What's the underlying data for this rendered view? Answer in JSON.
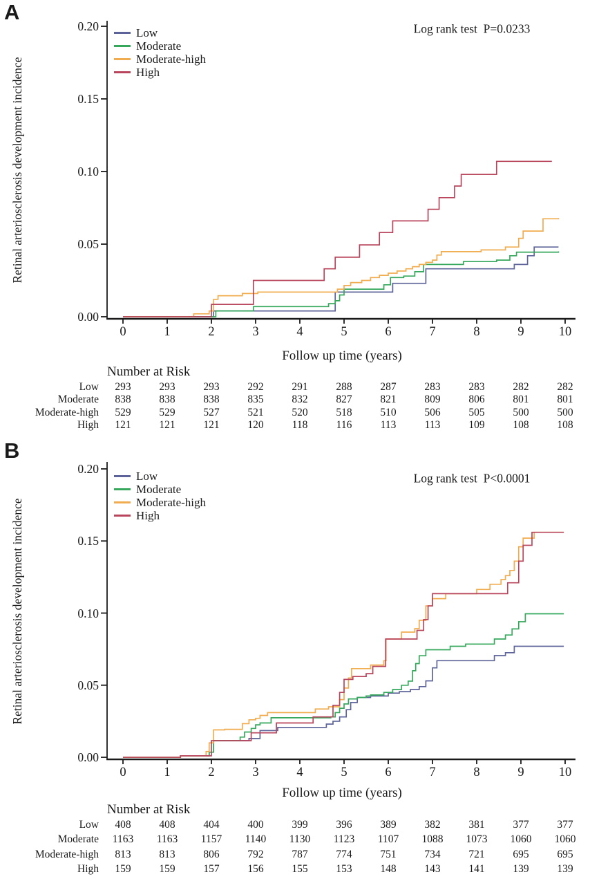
{
  "figure_type": "kaplan-meier-cumulative-incidence",
  "colors": {
    "low": "#5c6399",
    "moderate": "#35a85c",
    "moderate_high": "#f0ac4e",
    "high": "#b8455c",
    "axis": "#1a1a1a"
  },
  "chart_data": [
    {
      "panel": "A",
      "type": "line",
      "subtype": "step",
      "annotation": "Log rank test  P=0.0233",
      "xlabel": "Follow up time (years)",
      "ylabel": "Retinal arteriosclerosis development incidence",
      "xlim": [
        0,
        10
      ],
      "ylim": [
        0,
        0.2
      ],
      "xticks": [
        0,
        1,
        2,
        3,
        4,
        5,
        6,
        7,
        8,
        9,
        10
      ],
      "ytick_labels": [
        "0.00",
        "0.05",
        "0.10",
        "0.15",
        "0.20"
      ],
      "grid": false,
      "legend_position": "upper-left-inside",
      "series": [
        {
          "name": "Low",
          "color": "#5c6399",
          "points": [
            [
              0,
              0
            ],
            [
              2.05,
              0.004
            ],
            [
              4.8,
              0.017
            ],
            [
              6.1,
              0.023
            ],
            [
              6.85,
              0.033
            ],
            [
              8.85,
              0.036
            ],
            [
              9.15,
              0.042
            ],
            [
              9.3,
              0.048
            ],
            [
              9.85,
              0.048
            ]
          ]
        },
        {
          "name": "Moderate",
          "color": "#35a85c",
          "points": [
            [
              0,
              0
            ],
            [
              2.1,
              0.004
            ],
            [
              2.95,
              0.007
            ],
            [
              4.65,
              0.009
            ],
            [
              4.8,
              0.011
            ],
            [
              4.9,
              0.015
            ],
            [
              5.0,
              0.019
            ],
            [
              5.9,
              0.022
            ],
            [
              6.05,
              0.027
            ],
            [
              6.35,
              0.028
            ],
            [
              6.6,
              0.031
            ],
            [
              6.8,
              0.036
            ],
            [
              7.7,
              0.038
            ],
            [
              8.45,
              0.039
            ],
            [
              8.75,
              0.042
            ],
            [
              8.9,
              0.0445
            ],
            [
              9.85,
              0.045
            ]
          ]
        },
        {
          "name": "Moderate-high",
          "color": "#f0ac4e",
          "points": [
            [
              0,
              0
            ],
            [
              1.6,
              0.002
            ],
            [
              1.95,
              0.004
            ],
            [
              2.05,
              0.012
            ],
            [
              2.15,
              0.0145
            ],
            [
              2.7,
              0.016
            ],
            [
              3.05,
              0.017
            ],
            [
              4.85,
              0.019
            ],
            [
              5.0,
              0.0215
            ],
            [
              5.15,
              0.0235
            ],
            [
              5.4,
              0.025
            ],
            [
              5.6,
              0.027
            ],
            [
              5.8,
              0.0285
            ],
            [
              6.0,
              0.03
            ],
            [
              6.2,
              0.0315
            ],
            [
              6.4,
              0.033
            ],
            [
              6.55,
              0.0345
            ],
            [
              6.7,
              0.036
            ],
            [
              6.85,
              0.0375
            ],
            [
              7.0,
              0.039
            ],
            [
              7.1,
              0.0425
            ],
            [
              7.2,
              0.0448
            ],
            [
              8.1,
              0.046
            ],
            [
              8.65,
              0.048
            ],
            [
              8.95,
              0.054
            ],
            [
              9.05,
              0.059
            ],
            [
              9.5,
              0.0675
            ],
            [
              9.85,
              0.068
            ]
          ]
        },
        {
          "name": "High",
          "color": "#b8455c",
          "points": [
            [
              0,
              0
            ],
            [
              2.0,
              0.0085
            ],
            [
              2.95,
              0.025
            ],
            [
              4.55,
              0.033
            ],
            [
              4.8,
              0.041
            ],
            [
              5.35,
              0.0495
            ],
            [
              5.8,
              0.058
            ],
            [
              6.1,
              0.066
            ],
            [
              6.9,
              0.074
            ],
            [
              7.15,
              0.082
            ],
            [
              7.5,
              0.09
            ],
            [
              7.65,
              0.098
            ],
            [
              8.45,
              0.107
            ],
            [
              9.7,
              0.107
            ]
          ]
        }
      ],
      "number_at_risk": {
        "header": "Number at Risk",
        "time_points": [
          0,
          1,
          2,
          3,
          4,
          5,
          6,
          7,
          8,
          9,
          10
        ],
        "rows": [
          {
            "label": "Low",
            "counts": [
              293,
              293,
              293,
              292,
              291,
              288,
              287,
              283,
              283,
              282,
              282
            ]
          },
          {
            "label": "Moderate",
            "counts": [
              838,
              838,
              838,
              835,
              832,
              827,
              821,
              809,
              806,
              801,
              801
            ]
          },
          {
            "label": "Moderate-high",
            "counts": [
              529,
              529,
              527,
              521,
              520,
              518,
              510,
              506,
              505,
              500,
              500
            ]
          },
          {
            "label": "High",
            "counts": [
              121,
              121,
              121,
              120,
              118,
              116,
              113,
              113,
              109,
              108,
              108
            ]
          }
        ]
      }
    },
    {
      "panel": "B",
      "type": "line",
      "subtype": "step",
      "annotation": "Log rank test  P<0.0001",
      "xlabel": "Follow up time (years)",
      "ylabel": "Retinal arteriosclerosis development incidence",
      "xlim": [
        0,
        10
      ],
      "ylim": [
        0,
        0.2
      ],
      "xticks": [
        0,
        1,
        2,
        3,
        4,
        5,
        6,
        7,
        8,
        9,
        10
      ],
      "ytick_labels": [
        "0.00",
        "0.05",
        "0.10",
        "0.15",
        "0.20"
      ],
      "grid": false,
      "legend_position": "upper-left-inside",
      "series": [
        {
          "name": "Low",
          "color": "#5c6399",
          "points": [
            [
              0,
              0
            ],
            [
              1.3,
              0.001
            ],
            [
              1.95,
              0.0035
            ],
            [
              2.05,
              0.0115
            ],
            [
              2.85,
              0.013
            ],
            [
              3.1,
              0.0185
            ],
            [
              3.5,
              0.0207
            ],
            [
              4.6,
              0.023
            ],
            [
              4.75,
              0.025
            ],
            [
              4.9,
              0.028
            ],
            [
              5.05,
              0.033
            ],
            [
              5.15,
              0.038
            ],
            [
              5.3,
              0.0415
            ],
            [
              5.6,
              0.0425
            ],
            [
              6.0,
              0.0445
            ],
            [
              6.25,
              0.0455
            ],
            [
              6.5,
              0.047
            ],
            [
              6.7,
              0.049
            ],
            [
              6.85,
              0.053
            ],
            [
              7.0,
              0.062
            ],
            [
              7.1,
              0.067
            ],
            [
              8.4,
              0.0705
            ],
            [
              8.65,
              0.0725
            ],
            [
              8.85,
              0.077
            ],
            [
              9.97,
              0.077
            ]
          ]
        },
        {
          "name": "Moderate",
          "color": "#35a85c",
          "points": [
            [
              0,
              0
            ],
            [
              1.3,
              0.001
            ],
            [
              1.95,
              0.0035
            ],
            [
              2.05,
              0.0115
            ],
            [
              2.65,
              0.014
            ],
            [
              2.75,
              0.0175
            ],
            [
              2.9,
              0.02
            ],
            [
              3.0,
              0.0225
            ],
            [
              3.1,
              0.0238
            ],
            [
              3.35,
              0.0274
            ],
            [
              4.7,
              0.028
            ],
            [
              4.8,
              0.031
            ],
            [
              4.9,
              0.034
            ],
            [
              5.0,
              0.037
            ],
            [
              5.1,
              0.0405
            ],
            [
              5.3,
              0.0415
            ],
            [
              5.5,
              0.0425
            ],
            [
              5.6,
              0.0432
            ],
            [
              5.9,
              0.045
            ],
            [
              6.1,
              0.047
            ],
            [
              6.3,
              0.05
            ],
            [
              6.45,
              0.0528
            ],
            [
              6.55,
              0.06
            ],
            [
              6.62,
              0.065
            ],
            [
              6.7,
              0.0704
            ],
            [
              6.85,
              0.0746
            ],
            [
              7.4,
              0.077
            ],
            [
              7.75,
              0.0785
            ],
            [
              8.4,
              0.082
            ],
            [
              8.65,
              0.0848
            ],
            [
              8.8,
              0.089
            ],
            [
              8.95,
              0.094
            ],
            [
              9.1,
              0.0995
            ],
            [
              9.97,
              0.0995
            ]
          ]
        },
        {
          "name": "Moderate-high",
          "color": "#f0ac4e",
          "points": [
            [
              0,
              0
            ],
            [
              1.3,
              0.001
            ],
            [
              1.88,
              0.004
            ],
            [
              1.95,
              0.01
            ],
            [
              2.05,
              0.019
            ],
            [
              2.3,
              0.0194
            ],
            [
              2.7,
              0.0233
            ],
            [
              2.85,
              0.026
            ],
            [
              3.0,
              0.027
            ],
            [
              3.1,
              0.029
            ],
            [
              3.27,
              0.031
            ],
            [
              4.35,
              0.0335
            ],
            [
              4.65,
              0.035
            ],
            [
              4.9,
              0.04
            ],
            [
              5.0,
              0.048
            ],
            [
              5.1,
              0.055
            ],
            [
              5.17,
              0.0615
            ],
            [
              5.6,
              0.064
            ],
            [
              5.9,
              0.067
            ],
            [
              5.95,
              0.082
            ],
            [
              6.3,
              0.0868
            ],
            [
              6.6,
              0.0892
            ],
            [
              6.7,
              0.095
            ],
            [
              6.85,
              0.105
            ],
            [
              7.0,
              0.11
            ],
            [
              7.3,
              0.1135
            ],
            [
              8.0,
              0.1164
            ],
            [
              8.3,
              0.12
            ],
            [
              8.55,
              0.1232
            ],
            [
              8.65,
              0.126
            ],
            [
              8.75,
              0.1295
            ],
            [
              8.85,
              0.136
            ],
            [
              8.95,
              0.146
            ],
            [
              9.05,
              0.152
            ],
            [
              9.3,
              0.156
            ],
            [
              9.97,
              0.156
            ]
          ]
        },
        {
          "name": "High",
          "color": "#b8455c",
          "points": [
            [
              0,
              0
            ],
            [
              1.3,
              0.001
            ],
            [
              2.0,
              0.0115
            ],
            [
              2.9,
              0.017
            ],
            [
              3.47,
              0.0238
            ],
            [
              4.3,
              0.028
            ],
            [
              4.75,
              0.036
            ],
            [
              4.9,
              0.045
            ],
            [
              5.0,
              0.054
            ],
            [
              5.2,
              0.056
            ],
            [
              5.5,
              0.058
            ],
            [
              5.65,
              0.063
            ],
            [
              5.94,
              0.082
            ],
            [
              6.65,
              0.088
            ],
            [
              6.8,
              0.0955
            ],
            [
              6.9,
              0.105
            ],
            [
              7.0,
              0.1135
            ],
            [
              8.7,
              0.121
            ],
            [
              8.95,
              0.136
            ],
            [
              9.05,
              0.147
            ],
            [
              9.25,
              0.156
            ],
            [
              9.97,
              0.156
            ]
          ]
        }
      ],
      "number_at_risk": {
        "header": "Number at Risk",
        "time_points": [
          0,
          1,
          2,
          3,
          4,
          5,
          6,
          7,
          8,
          9,
          10
        ],
        "rows": [
          {
            "label": "Low",
            "counts": [
              408,
              408,
              404,
              400,
              399,
              396,
              389,
              382,
              381,
              377,
              377
            ]
          },
          {
            "label": "Moderate",
            "counts": [
              1163,
              1163,
              1157,
              1140,
              1130,
              1123,
              1107,
              1088,
              1073,
              1060,
              1060
            ]
          },
          {
            "label": "Moderate-high",
            "counts": [
              813,
              813,
              806,
              792,
              787,
              774,
              751,
              734,
              721,
              695,
              695
            ]
          },
          {
            "label": "High",
            "counts": [
              159,
              159,
              157,
              156,
              155,
              153,
              148,
              143,
              141,
              139,
              139
            ]
          }
        ]
      }
    }
  ]
}
